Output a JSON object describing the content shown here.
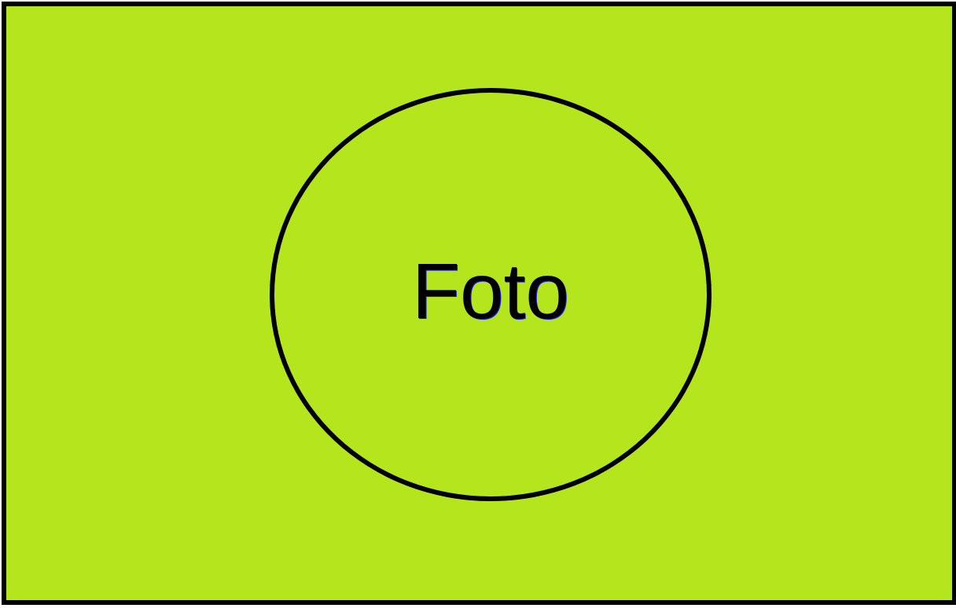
{
  "placeholder": {
    "label": "Foto",
    "background_color": "#b5e61d",
    "border_color": "#000000"
  }
}
